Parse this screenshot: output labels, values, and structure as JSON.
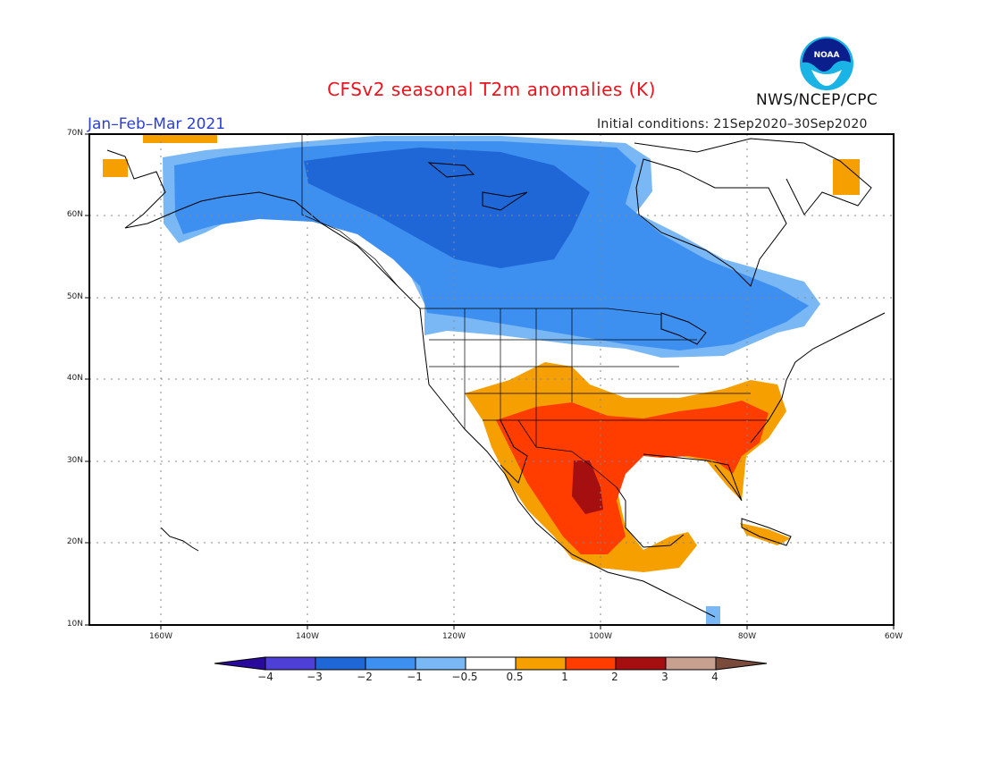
{
  "title": "CFSv2 seasonal T2m anomalies (K)",
  "period": "Jan–Feb–Mar 2021",
  "initial_conditions": "Initial conditions: 21Sep2020–30Sep2020",
  "agency": "NWS/NCEP/CPC",
  "logo_text": "NOAA",
  "latitude_labels": [
    "70N",
    "60N",
    "50N",
    "40N",
    "30N",
    "20N",
    "10N"
  ],
  "longitude_labels": [
    "160W",
    "140W",
    "120W",
    "100W",
    "80W",
    "60W"
  ],
  "colorbar": {
    "labels": [
      "−4",
      "−3",
      "−2",
      "−1",
      "−0.5",
      "0.5",
      "1",
      "2",
      "3",
      "4"
    ],
    "colors": [
      "#2a0a9c",
      "#4e3fd6",
      "#1f66d6",
      "#3d8ff0",
      "#7ab8f5",
      "#ffffff",
      "#f5a000",
      "#ff3d00",
      "#a50f0f",
      "#c8a08f",
      "#7a4a3a"
    ]
  },
  "anomaly_regions": [
    {
      "label": "cold_strong",
      "color": "#1f66d6"
    },
    {
      "label": "cold",
      "color": "#3d8ff0"
    },
    {
      "label": "cool",
      "color": "#7ab8f5"
    },
    {
      "label": "warm",
      "color": "#f5a000"
    },
    {
      "label": "hot",
      "color": "#ff3d00"
    },
    {
      "label": "very_hot",
      "color": "#a50f0f"
    }
  ]
}
